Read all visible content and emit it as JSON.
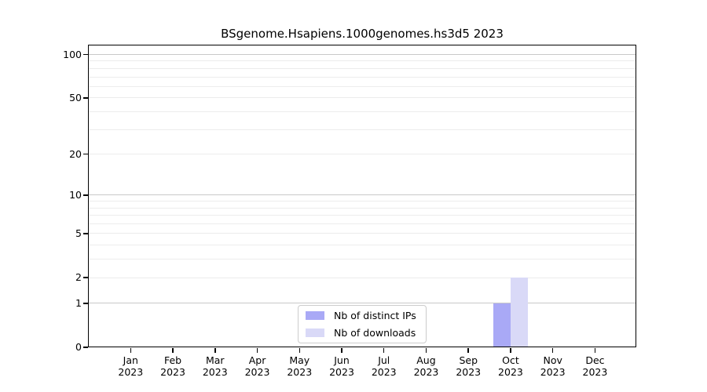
{
  "chart_data": {
    "type": "bar",
    "title": "BSgenome.Hsapiens.1000genomes.hs3d5 2023",
    "categories": [
      "Jan",
      "Feb",
      "Mar",
      "Apr",
      "May",
      "Jun",
      "Jul",
      "Aug",
      "Sep",
      "Oct",
      "Nov",
      "Dec"
    ],
    "year": "2023",
    "series": [
      {
        "name": "Nb of distinct IPs",
        "color": "#a9a9f6",
        "values": [
          0,
          0,
          0,
          0,
          0,
          0,
          0,
          0,
          0,
          1,
          0,
          0
        ]
      },
      {
        "name": "Nb of downloads",
        "color": "#d9d9f7",
        "values": [
          0,
          0,
          0,
          0,
          0,
          0,
          0,
          0,
          0,
          2,
          0,
          0
        ]
      }
    ],
    "yscale": "log1p",
    "ylim": [
      0,
      100
    ],
    "yticks": [
      0,
      1,
      2,
      5,
      10,
      20,
      50,
      100
    ],
    "grid_major_at": [
      1,
      10,
      100
    ],
    "grid_minor_at": [
      2,
      3,
      4,
      5,
      6,
      7,
      8,
      9,
      20,
      30,
      40,
      50,
      60,
      70,
      80,
      90
    ],
    "grid": "horizontal",
    "legend": {
      "position": "bottom-center",
      "entries": [
        "Nb of distinct IPs",
        "Nb of downloads"
      ]
    },
    "colors": {
      "axis": "#000000",
      "background": "#ffffff",
      "grid_major": "#c9c9c9",
      "grid_minor": "#ececec",
      "legend_border": "#cccccc",
      "text": "#000000"
    }
  }
}
